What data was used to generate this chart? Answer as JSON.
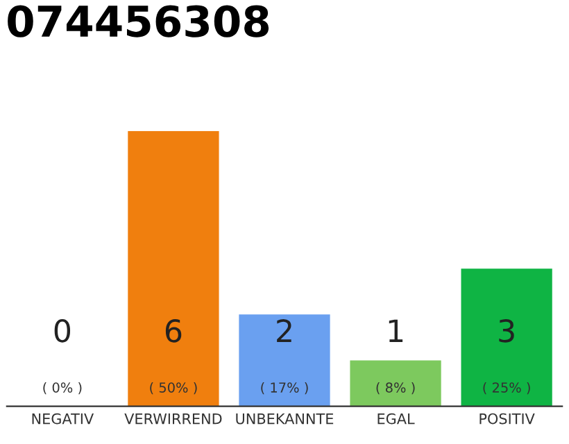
{
  "chart_data": {
    "type": "bar",
    "title": "074456308",
    "categories": [
      "NEGATIV",
      "VERWIRREND",
      "UNBEKANNTE",
      "EGAL",
      "POSITIV"
    ],
    "values": [
      0,
      6,
      2,
      1,
      3
    ],
    "colors": [
      "#888888",
      "#f07f0e",
      "#6aa0f0",
      "#7dc95e",
      "#0fb444"
    ],
    "ylim": [
      0,
      6
    ],
    "tick_labels": "x",
    "data_labels": true,
    "annotations": [
      "( 0% )",
      "( 50% )",
      "( 17% )",
      "( 8% )",
      "( 25% )"
    ]
  }
}
